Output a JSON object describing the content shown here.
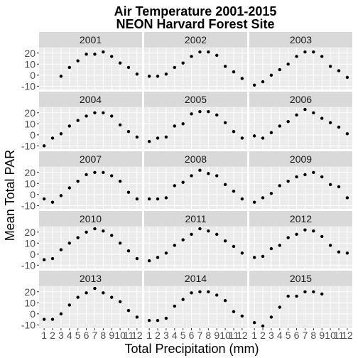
{
  "chart_data": {
    "type": "scatter",
    "title": [
      "Air Temperature 2001-2015",
      "NEON Harvard Forest Site"
    ],
    "xlabel": "Total Precipitation (mm)",
    "ylabel": "Mean Total PAR",
    "x_ticks": [
      1,
      2,
      3,
      4,
      5,
      6,
      7,
      8,
      9,
      10,
      11,
      12
    ],
    "y_ticks": [
      -10,
      0,
      10,
      20
    ],
    "xlim": [
      0.4,
      12.6
    ],
    "ylim": [
      -13,
      25
    ],
    "facet_columns": 3,
    "grid": true,
    "colors": {
      "panel_bg": "#ebebeb",
      "strip_bg": "#d9d9d9",
      "grid_major": "#ffffff",
      "point": "#000000"
    },
    "facets": [
      {
        "label": "2001",
        "x": [
          3,
          4,
          5,
          6,
          7,
          8,
          9,
          10,
          11,
          12
        ],
        "y": [
          -1,
          7,
          13,
          19,
          19,
          21,
          17,
          11,
          7,
          1
        ]
      },
      {
        "label": "2002",
        "x": [
          1,
          2,
          3,
          4,
          5,
          6,
          7,
          8,
          9,
          10,
          11,
          12
        ],
        "y": [
          -1,
          -1,
          1,
          7,
          11,
          17,
          21,
          21,
          18,
          8,
          3,
          -3
        ]
      },
      {
        "label": "2003",
        "x": [
          1,
          2,
          3,
          4,
          5,
          6,
          7,
          8,
          9,
          10,
          11,
          12
        ],
        "y": [
          -9,
          -6,
          0,
          5,
          10,
          17,
          21,
          21,
          17,
          8,
          4,
          -2
        ]
      },
      {
        "label": "2004",
        "x": [
          1,
          2,
          3,
          4,
          5,
          6,
          7,
          8,
          9,
          10,
          11,
          12
        ],
        "y": [
          -10,
          -3,
          1,
          8,
          13,
          17,
          20,
          20,
          17,
          9,
          3,
          -2
        ]
      },
      {
        "label": "2005",
        "x": [
          1,
          2,
          3,
          4,
          5,
          6,
          7,
          8,
          9,
          10,
          11,
          12
        ],
        "y": [
          -6,
          -3,
          -2,
          8,
          10,
          19,
          21,
          21,
          18,
          11,
          3,
          -3
        ]
      },
      {
        "label": "2006",
        "x": [
          1,
          2,
          3,
          4,
          5,
          6,
          7,
          8,
          9,
          10,
          11,
          12
        ],
        "y": [
          -1,
          -3,
          2,
          8,
          12,
          18,
          23,
          20,
          15,
          11,
          7,
          1
        ]
      },
      {
        "label": "2007",
        "x": [
          1,
          2,
          3,
          4,
          5,
          6,
          7,
          8,
          9,
          10,
          11,
          12
        ],
        "y": [
          -4,
          -7,
          -1,
          6,
          12,
          18,
          20,
          20,
          17,
          12,
          2,
          -4
        ]
      },
      {
        "label": "2008",
        "x": [
          1,
          2,
          3,
          4,
          5,
          6,
          7,
          8,
          9,
          10,
          11,
          12
        ],
        "y": [
          -4,
          -4,
          -3,
          8,
          11,
          17,
          22,
          19,
          17,
          9,
          3,
          -4
        ]
      },
      {
        "label": "2009",
        "x": [
          1,
          2,
          3,
          4,
          5,
          6,
          7,
          8,
          9,
          10,
          11,
          12
        ],
        "y": [
          -7,
          -3,
          1,
          8,
          12,
          16,
          18,
          20,
          16,
          9,
          7,
          -3
        ]
      },
      {
        "label": "2010",
        "x": [
          1,
          2,
          3,
          4,
          5,
          6,
          7,
          8,
          9,
          10,
          11,
          12
        ],
        "y": [
          -5,
          -4,
          4,
          10,
          15,
          20,
          23,
          21,
          17,
          10,
          3,
          -4
        ]
      },
      {
        "label": "2011",
        "x": [
          1,
          2,
          3,
          4,
          5,
          6,
          7,
          8,
          9,
          10,
          11,
          12
        ],
        "y": [
          -6,
          -3,
          1,
          8,
          13,
          18,
          23,
          21,
          18,
          12,
          7,
          1
        ]
      },
      {
        "label": "2012",
        "x": [
          1,
          2,
          3,
          4,
          5,
          6,
          7,
          8,
          9,
          10,
          11,
          12
        ],
        "y": [
          -3,
          -2,
          5,
          8,
          15,
          18,
          22,
          21,
          16,
          8,
          2,
          1
        ]
      },
      {
        "label": "2013",
        "x": [
          1,
          2,
          3,
          4,
          5,
          6,
          7,
          8,
          9,
          10,
          11,
          12
        ],
        "y": [
          -5,
          -5,
          0,
          8,
          15,
          19,
          23,
          19,
          15,
          11,
          3,
          -3
        ]
      },
      {
        "label": "2014",
        "x": [
          1,
          2,
          3,
          4,
          5,
          6,
          7,
          8,
          9,
          10,
          11,
          12
        ],
        "y": [
          -6,
          -6,
          -4,
          7,
          13,
          19,
          20,
          20,
          17,
          12,
          2,
          -2
        ]
      },
      {
        "label": "2015",
        "x": [
          1,
          2,
          3,
          4,
          5,
          6,
          7,
          8,
          9
        ],
        "y": [
          -8,
          -11,
          -3,
          6,
          16,
          16,
          20,
          20,
          18
        ]
      }
    ]
  }
}
